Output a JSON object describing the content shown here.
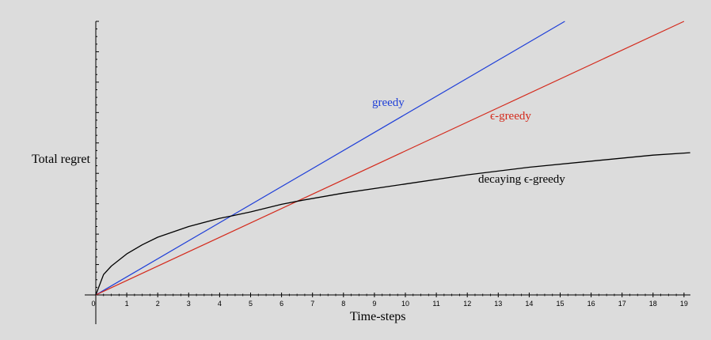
{
  "chart_data": {
    "type": "line",
    "xlabel": "Time-steps",
    "ylabel": "Total regret",
    "xlim": [
      0,
      19.2
    ],
    "ylim": [
      0,
      9
    ],
    "x_ticks": [
      "0",
      "1",
      "2",
      "3",
      "4",
      "5",
      "6",
      "7",
      "8",
      "9",
      "10",
      "11",
      "12",
      "13",
      "14",
      "15",
      "16",
      "17",
      "18",
      "19"
    ],
    "y_ticks_labeled": false,
    "grid": false,
    "legend": "none",
    "series": [
      {
        "name": "greedy",
        "color": "#1f3fd8",
        "kind": "linear",
        "x": [
          0,
          15.15
        ],
        "y": [
          0,
          9
        ]
      },
      {
        "name": "ϵ-greedy",
        "color": "#d42a1c",
        "kind": "linear",
        "x": [
          0,
          19
        ],
        "y": [
          0,
          9
        ]
      },
      {
        "name": "decaying ϵ-greedy",
        "color": "#000000",
        "kind": "curve",
        "x": [
          0,
          0.25,
          0.5,
          1,
          1.5,
          2,
          3,
          4,
          4.4,
          5,
          6,
          6.6,
          8,
          10,
          12,
          14,
          16,
          18,
          19.2
        ],
        "y": [
          0,
          0.67,
          0.95,
          1.35,
          1.65,
          1.9,
          2.25,
          2.52,
          2.6,
          2.73,
          2.98,
          3.1,
          3.35,
          3.65,
          3.95,
          4.2,
          4.4,
          4.6,
          4.68
        ]
      }
    ]
  }
}
